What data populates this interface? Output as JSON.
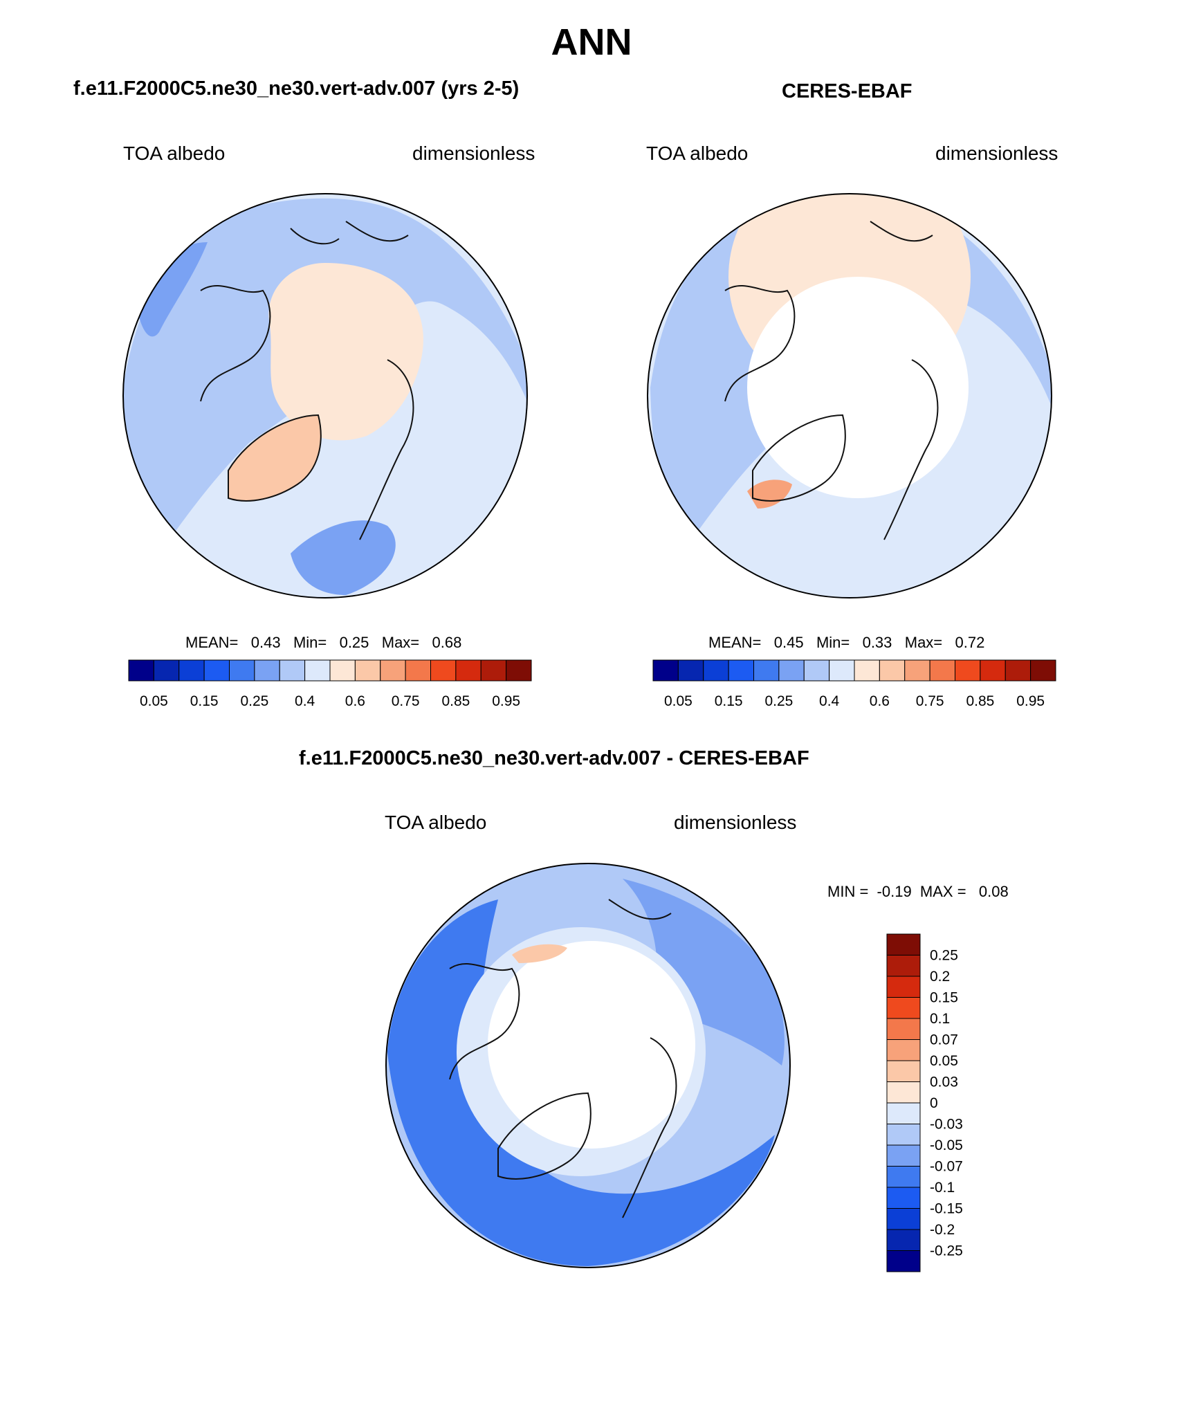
{
  "figure_title": "ANN",
  "panels": [
    {
      "title": "f.e11.F2000C5.ne30_ne30.vert-adv.007 (yrs 2-5)",
      "left_label": "TOA albedo",
      "right_label": "dimensionless",
      "stats": {
        "mean_label": "MEAN=",
        "mean": "0.43",
        "min_label": "Min=",
        "min": "0.25",
        "max_label": "Max=",
        "max": "0.68"
      }
    },
    {
      "title": "CERES-EBAF",
      "left_label": "TOA albedo",
      "right_label": "dimensionless",
      "stats": {
        "mean_label": "MEAN=",
        "mean": "0.45",
        "min_label": "Min=",
        "min": "0.33",
        "max_label": "Max=",
        "max": "0.72"
      }
    },
    {
      "title": "f.e11.F2000C5.ne30_ne30.vert-adv.007 - CERES-EBAF",
      "left_label": "TOA albedo",
      "right_label": "dimensionless",
      "stats": {
        "min_label": "MIN =",
        "min": "-0.19",
        "max_label": "MAX =",
        "max": "0.08"
      }
    }
  ],
  "colorbar_abs": {
    "ticks": [
      "0.05",
      "0.15",
      "0.25",
      "0.4",
      "0.6",
      "0.75",
      "0.85",
      "0.95"
    ],
    "colors": [
      "#00008a",
      "#0626b0",
      "#0b3fd6",
      "#1c5bf2",
      "#3f7af0",
      "#7aa2f3",
      "#b0c9f7",
      "#dde9fb",
      "#fde7d6",
      "#fbc8a8",
      "#f7a27a",
      "#f3784b",
      "#ef4a1e",
      "#d52a0e",
      "#ad1c0a",
      "#7e0d05"
    ]
  },
  "colorbar_diff": {
    "ticks": [
      "0.25",
      "0.2",
      "0.15",
      "0.1",
      "0.07",
      "0.05",
      "0.03",
      "0",
      "-0.03",
      "-0.05",
      "-0.07",
      "-0.1",
      "-0.15",
      "-0.2",
      "-0.25"
    ],
    "colors": [
      "#7e0d05",
      "#ad1c0a",
      "#d52a0e",
      "#ef4a1e",
      "#f3784b",
      "#f7a27a",
      "#fbc8a8",
      "#fde7d6",
      "#dde9fb",
      "#b0c9f7",
      "#7aa2f3",
      "#3f7af0",
      "#1c5bf2",
      "#0b3fd6",
      "#0626b0",
      "#00008a"
    ]
  },
  "map_colors": {
    "base_light": "#dde9fb",
    "mid_blue": "#b0c9f7",
    "blue": "#7aa2f3",
    "strong_blue": "#3f7af0",
    "peach": "#fde7d6",
    "salmon": "#fbc8a8",
    "orange": "#f7a27a",
    "missing": "#ffffff",
    "coast": "#111111"
  }
}
